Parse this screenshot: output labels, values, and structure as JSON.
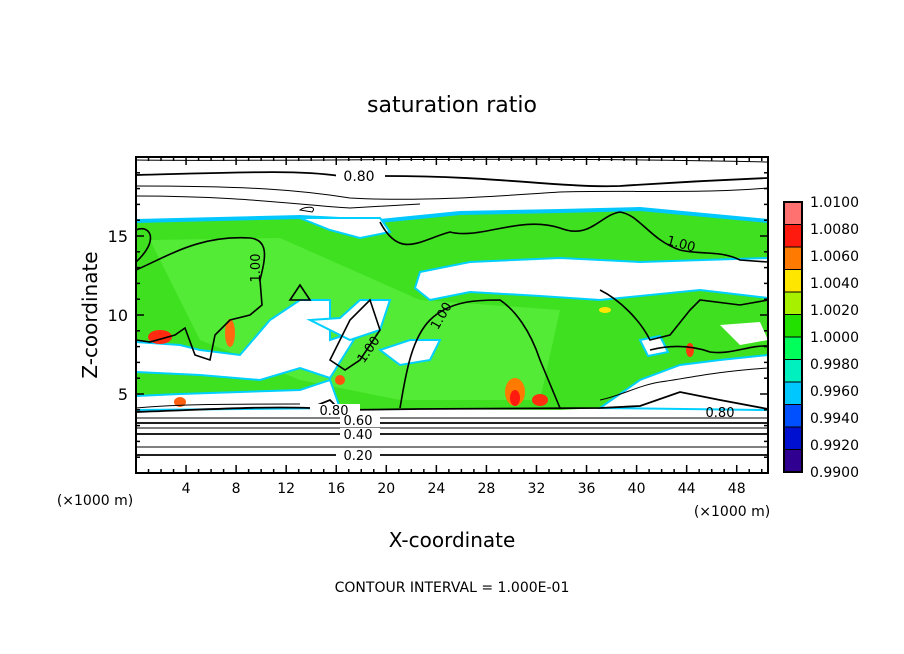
{
  "chart_data": {
    "type": "heatmap",
    "title": "saturation ratio",
    "xlabel": "X-coordinate",
    "ylabel": "Z-coordinate",
    "x_unit": "(×1000 m)",
    "y_unit": "(×1000 m)",
    "xlim": [
      0,
      50.5
    ],
    "ylim": [
      0,
      20
    ],
    "xticks": [
      4,
      8,
      12,
      16,
      20,
      24,
      28,
      32,
      36,
      40,
      44,
      48
    ],
    "yticks": [
      5,
      10,
      15
    ],
    "colorbar": {
      "labels": [
        "1.0100",
        "1.0080",
        "1.0060",
        "1.0040",
        "1.0020",
        "1.0000",
        "0.9980",
        "0.9960",
        "0.9940",
        "0.9920",
        "0.9900"
      ],
      "colors": [
        "#ff7070",
        "#ff1a10",
        "#ff7a00",
        "#ffe600",
        "#a6f000",
        "#22e000",
        "#00ff5a",
        "#00f0c0",
        "#00c8ff",
        "#0050ff",
        "#0010d0",
        "#300090"
      ]
    },
    "contours": [
      {
        "level": 0.2,
        "z": 1.2,
        "label": "0.20"
      },
      {
        "level": 0.4,
        "z": 2.3,
        "label": "0.40"
      },
      {
        "level": 0.6,
        "z": 2.9,
        "label": "0.60"
      },
      {
        "level": 0.8,
        "z": 3.6,
        "label": "0.80"
      },
      {
        "level": 0.8,
        "z": 18.2,
        "label": "0.80"
      },
      {
        "level": 1.0,
        "z": 12,
        "label": "1.00"
      }
    ],
    "contour_labels_drawn": [
      "0.80",
      "0.80",
      "0.60",
      "0.40",
      "0.20",
      "0.80",
      "1.00",
      "1.00",
      "1.00",
      "1.00"
    ],
    "annotation": "CONTOUR INTERVAL = 1.000E-01"
  }
}
